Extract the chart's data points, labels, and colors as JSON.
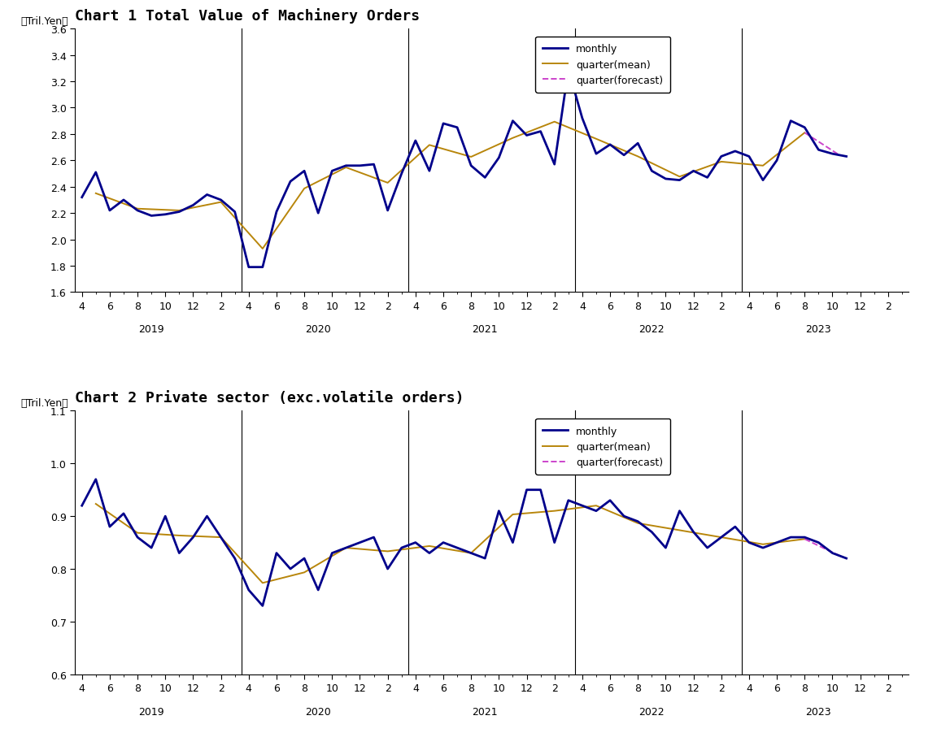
{
  "chart1_title": "Chart 1 Total Value of Machinery Orders",
  "chart2_title": "Chart 2 Private sector (exc.volatile orders)",
  "ylabel": "〈Tril.Yen〉",
  "chart1_ylim": [
    1.6,
    3.6
  ],
  "chart1_yticks": [
    1.6,
    1.8,
    2.0,
    2.2,
    2.4,
    2.6,
    2.8,
    3.0,
    3.2,
    3.4,
    3.6
  ],
  "chart2_ylim": [
    0.6,
    1.1
  ],
  "chart2_yticks": [
    0.6,
    0.7,
    0.8,
    0.9,
    1.0,
    1.1
  ],
  "monthly_color": "#00008B",
  "quarter_mean_color": "#B8860B",
  "quarter_forecast_color": "#CC44CC",
  "monthly_lw": 2.0,
  "quarter_lw": 1.4,
  "legend_fontsize": 9,
  "title_fontsize": 13,
  "tick_fontsize": 9,
  "year_label_fontsize": 9,
  "ylabel_fontsize": 9,
  "year_labels": [
    "2019",
    "2020",
    "2021",
    "2022",
    "2023"
  ],
  "chart1_monthly": [
    2.32,
    2.51,
    2.22,
    2.3,
    2.22,
    2.18,
    2.19,
    2.21,
    2.26,
    2.34,
    2.3,
    2.21,
    1.79,
    1.79,
    2.21,
    2.44,
    2.52,
    2.2,
    2.52,
    2.56,
    2.56,
    2.57,
    2.22,
    2.5,
    2.75,
    2.52,
    2.88,
    2.85,
    2.56,
    2.47,
    2.62,
    2.9,
    2.79,
    2.82,
    2.57,
    3.29,
    2.92,
    2.65,
    2.72,
    2.64,
    2.73,
    2.52,
    2.46,
    2.45,
    2.52,
    2.47,
    2.63,
    2.67,
    2.63,
    2.45,
    2.6,
    2.9,
    2.85,
    2.68,
    2.65,
    2.63
  ],
  "chart2_monthly": [
    0.92,
    0.97,
    0.88,
    0.905,
    0.86,
    0.84,
    0.9,
    0.83,
    0.86,
    0.9,
    0.86,
    0.82,
    0.76,
    0.73,
    0.83,
    0.8,
    0.82,
    0.76,
    0.83,
    0.84,
    0.85,
    0.86,
    0.8,
    0.84,
    0.85,
    0.83,
    0.85,
    0.84,
    0.83,
    0.82,
    0.91,
    0.85,
    0.95,
    0.95,
    0.85,
    0.93,
    0.92,
    0.91,
    0.93,
    0.9,
    0.89,
    0.87,
    0.84,
    0.91,
    0.87,
    0.84,
    0.86,
    0.88,
    0.85,
    0.84,
    0.85,
    0.86,
    0.86,
    0.85,
    0.83,
    0.82
  ]
}
